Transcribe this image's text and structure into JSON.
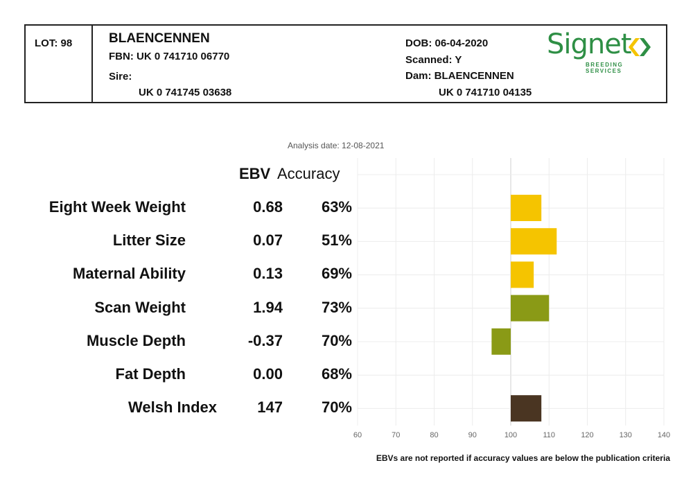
{
  "header": {
    "lot": "LOT: 98",
    "name": "BLAENCENNEN",
    "fbn": "FBN: UK 0 741710 06770",
    "sire_label": "Sire:",
    "sire_id": "UK 0 741745 03638",
    "dob": "DOB: 06-04-2020",
    "scanned": "Scanned: Y",
    "dam": "Dam: BLAENCENNEN",
    "dam_id": "UK 0 741710 04135"
  },
  "logo": {
    "name": "Signet",
    "subtitle": "BREEDING SERVICES",
    "icon": "signet-arrows-icon"
  },
  "analysis_date": "Analysis date: 12-08-2021",
  "columns": {
    "ebv": "EBV",
    "accuracy": "Accuracy"
  },
  "footnote": "EBVs are not reported if accuracy values are below the publication criteria",
  "chart_data": {
    "type": "bar",
    "orientation": "horizontal",
    "categories": [
      "Eight Week Weight",
      "Litter Size",
      "Maternal Ability",
      "Scan Weight",
      "Muscle Depth",
      "Fat Depth",
      "Welsh Index"
    ],
    "ebv": [
      "0.68",
      "0.07",
      "0.13",
      "1.94",
      "-0.37",
      "0.00",
      "147"
    ],
    "accuracy": [
      "63%",
      "51%",
      "69%",
      "73%",
      "70%",
      "68%",
      "70%"
    ],
    "values": [
      108,
      112,
      106,
      110,
      95,
      100,
      108
    ],
    "baseline": 100,
    "xlim": [
      60,
      140
    ],
    "xticks": [
      60,
      70,
      80,
      90,
      100,
      110,
      120,
      130,
      140
    ],
    "grid": true,
    "colors": [
      "#f5c400",
      "#f5c400",
      "#f5c400",
      "#8a9a16",
      "#8a9a16",
      "#8a9a16",
      "#4a3522"
    ]
  }
}
